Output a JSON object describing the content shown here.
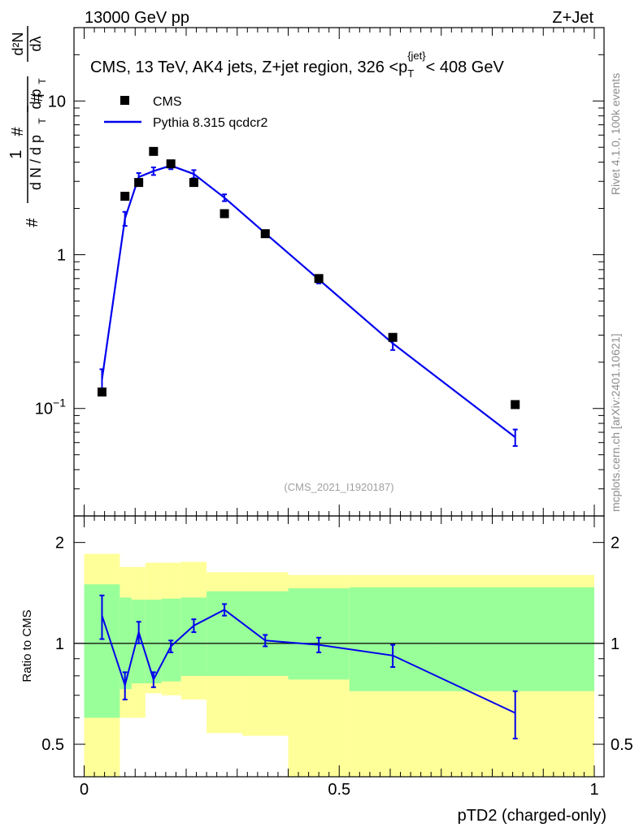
{
  "header": {
    "energy_label": "13000 GeV pp",
    "process_label": "Z+Jet"
  },
  "side_labels": {
    "rivet": "Rivet 4.1.0,  100k events",
    "mcplots": "mcplots.cern.ch [arXiv:2401.10621]"
  },
  "watermark": "(CMS_2021_I1920187)",
  "colors": {
    "mc_line": "#0000ee",
    "band_inner": "#99ff99",
    "band_outer": "#ffff99",
    "data_marker": "#000000"
  },
  "chart_data": [
    {
      "type": "line",
      "panel": "main",
      "title": "CMS, 13 TeV, AK4 jets, Z+jet region, 326 <p_T^{jet}< 408 GeV",
      "title_parts": {
        "prefix": "CMS, 13 TeV, AK4 jets, Z+jet region, 326 <p",
        "sub": "T",
        "sup": "{jet}",
        "suffix": "< 408 GeV"
      },
      "ylabel_parts": {
        "hash1": "#",
        "one": "1",
        "dn": "d N / d p",
        "hash2": "#",
        "dpt": "d p",
        "t": "T",
        "d2n": "d²N",
        "dlambda": "dλ",
        "hash3": "#"
      },
      "xlabel": "",
      "yscale": "log",
      "xlim": [
        0,
        1
      ],
      "ylim": [
        0.02,
        30
      ],
      "y_ticks": [
        {
          "value": 0.1,
          "base": "10",
          "exp": "−1"
        },
        {
          "value": 1,
          "label": "1"
        },
        {
          "value": 10,
          "label": "10"
        }
      ],
      "legend": [
        {
          "label": "CMS",
          "kind": "marker"
        },
        {
          "label": "Pythia 8.315 qcdcr2",
          "kind": "line"
        }
      ],
      "series": [
        {
          "name": "CMS",
          "kind": "markers",
          "x": [
            0.035,
            0.08,
            0.107,
            0.136,
            0.17,
            0.215,
            0.275,
            0.355,
            0.46,
            0.605,
            0.845
          ],
          "y": [
            0.128,
            2.4,
            2.95,
            4.7,
            3.9,
            2.95,
            1.85,
            1.37,
            0.7,
            0.29,
            0.106
          ]
        },
        {
          "name": "Pythia 8.315 qcdcr2",
          "kind": "line",
          "x": [
            0.035,
            0.08,
            0.107,
            0.136,
            0.17,
            0.215,
            0.275,
            0.355,
            0.46,
            0.605,
            0.845
          ],
          "y": [
            0.155,
            1.72,
            3.2,
            3.5,
            3.8,
            3.35,
            2.35,
            1.38,
            0.69,
            0.265,
            0.065
          ],
          "err": [
            0.025,
            0.18,
            0.2,
            0.2,
            0.2,
            0.2,
            0.12,
            0.06,
            0.04,
            0.025,
            0.008
          ]
        }
      ]
    },
    {
      "type": "line",
      "panel": "ratio",
      "xlabel": "pTD2 (charged-only)",
      "ylabel": "Ratio to CMS",
      "yscale": "log",
      "xlim": [
        0,
        1
      ],
      "ylim": [
        0.4,
        2.4
      ],
      "x_ticks": [
        0,
        0.5,
        1
      ],
      "x_tick_labels": [
        "0",
        "0.5",
        "1"
      ],
      "y_ticks": [
        0.5,
        1,
        2
      ],
      "y_tick_labels": [
        "0.5",
        "1",
        "2"
      ],
      "bands": {
        "edges": [
          0,
          0.07,
          0.093,
          0.12,
          0.152,
          0.19,
          0.24,
          0.31,
          0.4,
          0.52,
          0.69,
          1.0
        ],
        "inner_low": [
          0.6,
          0.73,
          0.76,
          0.76,
          0.77,
          0.8,
          0.8,
          0.8,
          0.78,
          0.72,
          0.72
        ],
        "inner_high": [
          1.5,
          1.37,
          1.35,
          1.35,
          1.36,
          1.37,
          1.43,
          1.43,
          1.46,
          1.47,
          1.47
        ],
        "outer_low": [
          0.38,
          0.6,
          0.6,
          0.71,
          0.7,
          0.68,
          0.54,
          0.53,
          0.37,
          0.37,
          0.37
        ],
        "outer_high": [
          1.85,
          1.69,
          1.69,
          1.74,
          1.74,
          1.75,
          1.63,
          1.63,
          1.6,
          1.6,
          1.6
        ]
      },
      "series": [
        {
          "name": "Pythia 8.315 qcdcr2 / CMS",
          "kind": "line",
          "x": [
            0.035,
            0.08,
            0.107,
            0.136,
            0.17,
            0.215,
            0.275,
            0.355,
            0.46,
            0.605,
            0.845
          ],
          "y": [
            1.21,
            0.75,
            1.08,
            0.78,
            0.98,
            1.13,
            1.26,
            1.02,
            0.99,
            0.92,
            0.62
          ],
          "err": [
            0.18,
            0.07,
            0.08,
            0.04,
            0.04,
            0.05,
            0.05,
            0.04,
            0.05,
            0.07,
            0.1
          ]
        }
      ]
    }
  ]
}
